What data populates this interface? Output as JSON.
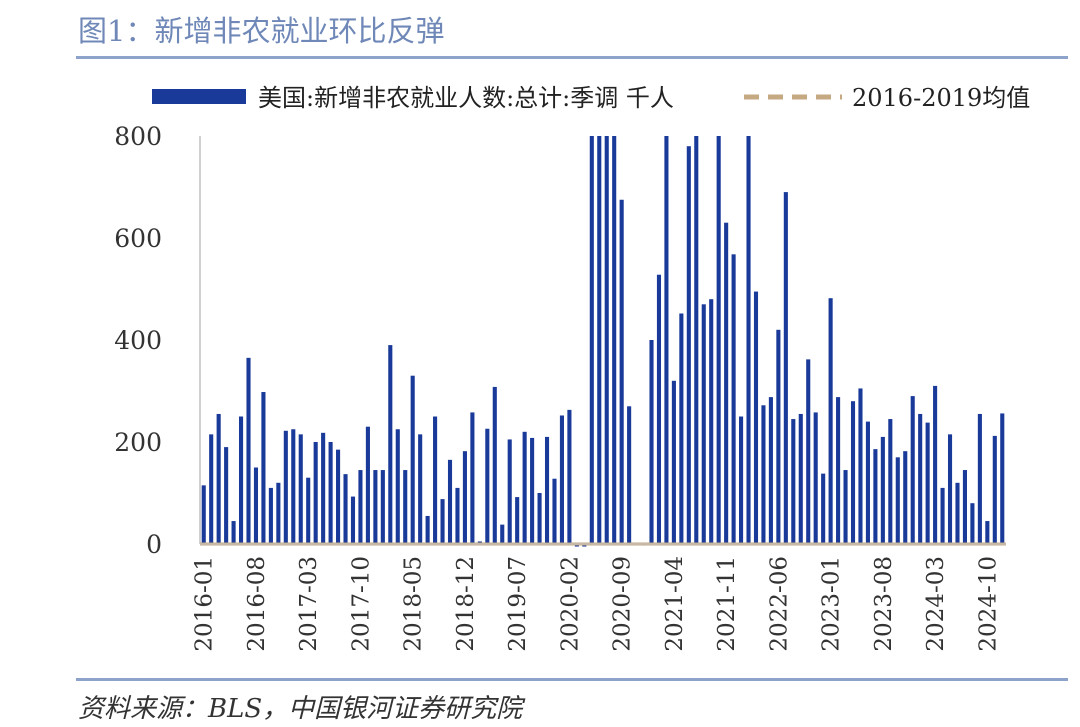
{
  "title": "图1：新增非农就业环比反弹",
  "source": "资料来源：BLS，中国银河证券研究院",
  "colors": {
    "bar": "#1a3a9a",
    "avg": "#c4a983",
    "title": "#6f88b8",
    "rule": "#8ea3cc"
  },
  "chart_data": {
    "type": "bar",
    "title": "",
    "xlabel": "",
    "ylabel": "",
    "ylim": [
      0,
      800
    ],
    "yticks": [
      0,
      200,
      400,
      600,
      800
    ],
    "legend_position": "top",
    "start_month": "2016-01",
    "xtick_labels": [
      "2016-01",
      "2016-08",
      "2017-03",
      "2017-10",
      "2018-05",
      "2018-12",
      "2019-07",
      "2020-02",
      "2020-09",
      "2021-04",
      "2021-11",
      "2022-06",
      "2023-01",
      "2023-08",
      "2024-03",
      "2024-10"
    ],
    "series": [
      {
        "name": "美国:新增非农就业人数:总计:季调 千人",
        "type": "bar",
        "values": [
          115,
          215,
          255,
          190,
          45,
          250,
          365,
          150,
          298,
          110,
          120,
          222,
          225,
          215,
          130,
          200,
          218,
          200,
          185,
          137,
          93,
          145,
          230,
          145,
          145,
          390,
          225,
          145,
          330,
          215,
          55,
          250,
          88,
          165,
          110,
          182,
          258,
          5,
          226,
          308,
          38,
          205,
          92,
          220,
          208,
          100,
          210,
          128,
          252,
          263,
          -5,
          -20,
          800,
          800,
          800,
          800,
          675,
          270,
          0,
          -3,
          400,
          528,
          800,
          320,
          452,
          780,
          800,
          470,
          480,
          800,
          630,
          568,
          250,
          800,
          495,
          272,
          288,
          420,
          690,
          245,
          255,
          362,
          258,
          138,
          482,
          288,
          145,
          280,
          305,
          240,
          186,
          210,
          245,
          170,
          182,
          290,
          255,
          238,
          310,
          110,
          215,
          120,
          145,
          80,
          255,
          45,
          212,
          256
        ]
      },
      {
        "name": "2016-2019均值",
        "type": "line",
        "value": 0
      }
    ]
  }
}
